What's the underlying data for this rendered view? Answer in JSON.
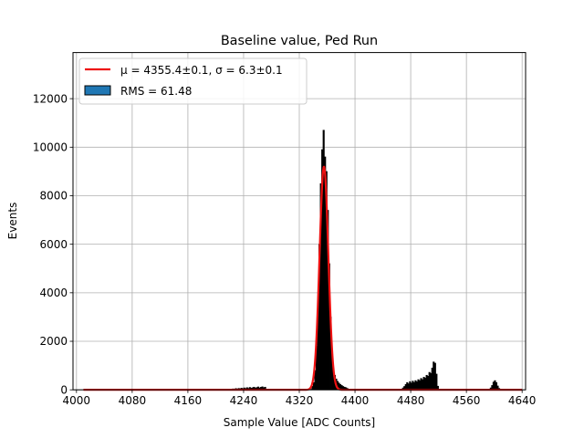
{
  "chart_data": {
    "type": "histogram",
    "title": "Baseline value, Ped Run",
    "xlabel": "Sample Value [ADC Counts]",
    "ylabel": "Events",
    "xlim": [
      3995,
      4645
    ],
    "ylim": [
      0,
      13900
    ],
    "xticks": [
      4000,
      4080,
      4160,
      4240,
      4320,
      4400,
      4480,
      4560,
      4640
    ],
    "yticks": [
      0,
      2000,
      4000,
      6000,
      8000,
      10000,
      12000
    ],
    "grid": true,
    "legend_position": "top-left",
    "legend": [
      {
        "label": "μ = 4355.4±0.1, σ = 6.3±0.1",
        "kind": "line",
        "color": "#ee1111"
      },
      {
        "label": "RMS = 61.48",
        "kind": "patch",
        "color": "#1f77b4"
      }
    ],
    "series": [
      {
        "kind": "histogram",
        "color": "#000000",
        "bins": [
          [
            4224,
            4226,
            40
          ],
          [
            4226,
            4228,
            25
          ],
          [
            4228,
            4230,
            55
          ],
          [
            4230,
            4232,
            35
          ],
          [
            4232,
            4234,
            60
          ],
          [
            4234,
            4236,
            45
          ],
          [
            4236,
            4238,
            70
          ],
          [
            4238,
            4240,
            50
          ],
          [
            4240,
            4242,
            80
          ],
          [
            4242,
            4244,
            55
          ],
          [
            4244,
            4246,
            90
          ],
          [
            4246,
            4248,
            60
          ],
          [
            4248,
            4250,
            100
          ],
          [
            4250,
            4252,
            70
          ],
          [
            4252,
            4254,
            85
          ],
          [
            4254,
            4256,
            110
          ],
          [
            4256,
            4258,
            75
          ],
          [
            4258,
            4260,
            95
          ],
          [
            4260,
            4262,
            120
          ],
          [
            4262,
            4264,
            80
          ],
          [
            4264,
            4266,
            105
          ],
          [
            4266,
            4268,
            125
          ],
          [
            4268,
            4270,
            90
          ],
          [
            4270,
            4272,
            110
          ],
          [
            4338,
            4340,
            150
          ],
          [
            4340,
            4342,
            300
          ],
          [
            4342,
            4344,
            800
          ],
          [
            4344,
            4346,
            1800
          ],
          [
            4346,
            4348,
            3500
          ],
          [
            4348,
            4350,
            6000
          ],
          [
            4350,
            4352,
            8500
          ],
          [
            4352,
            4354,
            9900
          ],
          [
            4354,
            4356,
            10700
          ],
          [
            4356,
            4358,
            9600
          ],
          [
            4358,
            4360,
            9000
          ],
          [
            4360,
            4362,
            7400
          ],
          [
            4362,
            4364,
            5200
          ],
          [
            4364,
            4366,
            3000
          ],
          [
            4366,
            4368,
            1600
          ],
          [
            4368,
            4370,
            900
          ],
          [
            4370,
            4372,
            600
          ],
          [
            4372,
            4374,
            450
          ],
          [
            4374,
            4376,
            350
          ],
          [
            4376,
            4378,
            280
          ],
          [
            4378,
            4380,
            220
          ],
          [
            4380,
            4382,
            180
          ],
          [
            4382,
            4384,
            140
          ],
          [
            4384,
            4386,
            110
          ],
          [
            4386,
            4388,
            90
          ],
          [
            4388,
            4390,
            60
          ],
          [
            4468,
            4470,
            80
          ],
          [
            4470,
            4472,
            140
          ],
          [
            4472,
            4474,
            220
          ],
          [
            4474,
            4476,
            300
          ],
          [
            4476,
            4478,
            250
          ],
          [
            4478,
            4480,
            340
          ],
          [
            4480,
            4482,
            280
          ],
          [
            4482,
            4484,
            360
          ],
          [
            4484,
            4486,
            300
          ],
          [
            4486,
            4488,
            380
          ],
          [
            4488,
            4490,
            330
          ],
          [
            4490,
            4492,
            420
          ],
          [
            4492,
            4494,
            380
          ],
          [
            4494,
            4496,
            470
          ],
          [
            4496,
            4498,
            420
          ],
          [
            4498,
            4500,
            520
          ],
          [
            4500,
            4502,
            480
          ],
          [
            4502,
            4504,
            600
          ],
          [
            4504,
            4506,
            560
          ],
          [
            4506,
            4508,
            720
          ],
          [
            4508,
            4510,
            680
          ],
          [
            4510,
            4512,
            900
          ],
          [
            4512,
            4514,
            1150
          ],
          [
            4514,
            4516,
            1100
          ],
          [
            4516,
            4518,
            650
          ],
          [
            4518,
            4520,
            150
          ],
          [
            4594,
            4596,
            80
          ],
          [
            4596,
            4598,
            180
          ],
          [
            4598,
            4600,
            320
          ],
          [
            4600,
            4602,
            380
          ],
          [
            4602,
            4604,
            300
          ],
          [
            4604,
            4606,
            160
          ],
          [
            4606,
            4608,
            60
          ]
        ]
      },
      {
        "kind": "gaussian-fit",
        "color": "#ee1111",
        "mu": 4355.4,
        "sigma": 6.3,
        "amplitude": 9200,
        "x_range": [
          4010,
          4640
        ]
      }
    ]
  }
}
